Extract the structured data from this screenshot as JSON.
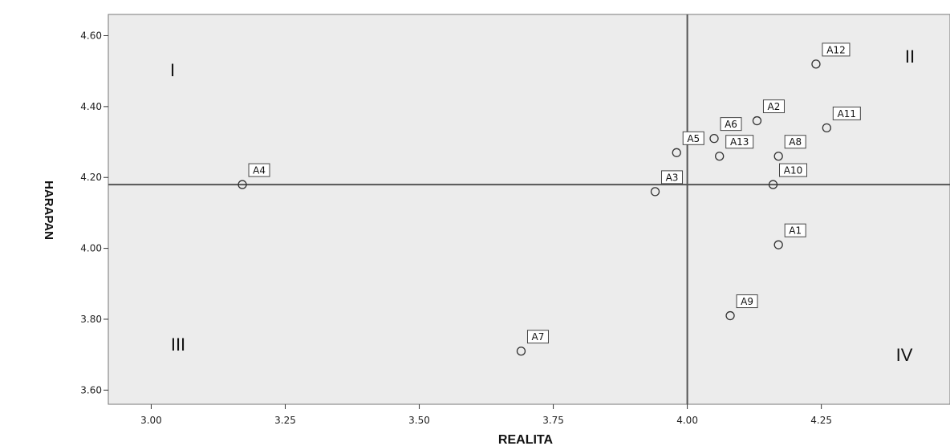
{
  "chart_data": {
    "type": "scatter",
    "xlabel": "REALITA",
    "ylabel": "HARAPAN",
    "xlim": [
      2.92,
      4.49
    ],
    "ylim": [
      3.56,
      4.66
    ],
    "x_ticks": [
      "3.00",
      "3.25",
      "3.50",
      "3.75",
      "4.00",
      "4.25"
    ],
    "y_ticks": [
      "3.60",
      "3.80",
      "4.00",
      "4.20",
      "4.40",
      "4.60"
    ],
    "reference_lines": {
      "x": 4.0,
      "y": 4.18
    },
    "grid": false,
    "quadrants": [
      "I",
      "II",
      "III",
      "IV"
    ],
    "points": [
      {
        "label": "A12",
        "x": 4.24,
        "y": 4.52
      },
      {
        "label": "A2",
        "x": 4.13,
        "y": 4.36
      },
      {
        "label": "A11",
        "x": 4.26,
        "y": 4.34
      },
      {
        "label": "A6",
        "x": 4.05,
        "y": 4.31
      },
      {
        "label": "A5",
        "x": 3.98,
        "y": 4.27
      },
      {
        "label": "A8",
        "x": 4.17,
        "y": 4.26
      },
      {
        "label": "A13",
        "x": 4.06,
        "y": 4.26
      },
      {
        "label": "A4",
        "x": 3.17,
        "y": 4.18
      },
      {
        "label": "A10",
        "x": 4.16,
        "y": 4.18
      },
      {
        "label": "A3",
        "x": 3.94,
        "y": 4.16
      },
      {
        "label": "A1",
        "x": 4.17,
        "y": 4.01
      },
      {
        "label": "A9",
        "x": 4.08,
        "y": 3.81
      },
      {
        "label": "A7",
        "x": 3.69,
        "y": 3.71
      }
    ]
  },
  "colors": {
    "plot_bg": "#ececec",
    "line": "#555555",
    "frame": "#777777",
    "marker": "#333333"
  }
}
